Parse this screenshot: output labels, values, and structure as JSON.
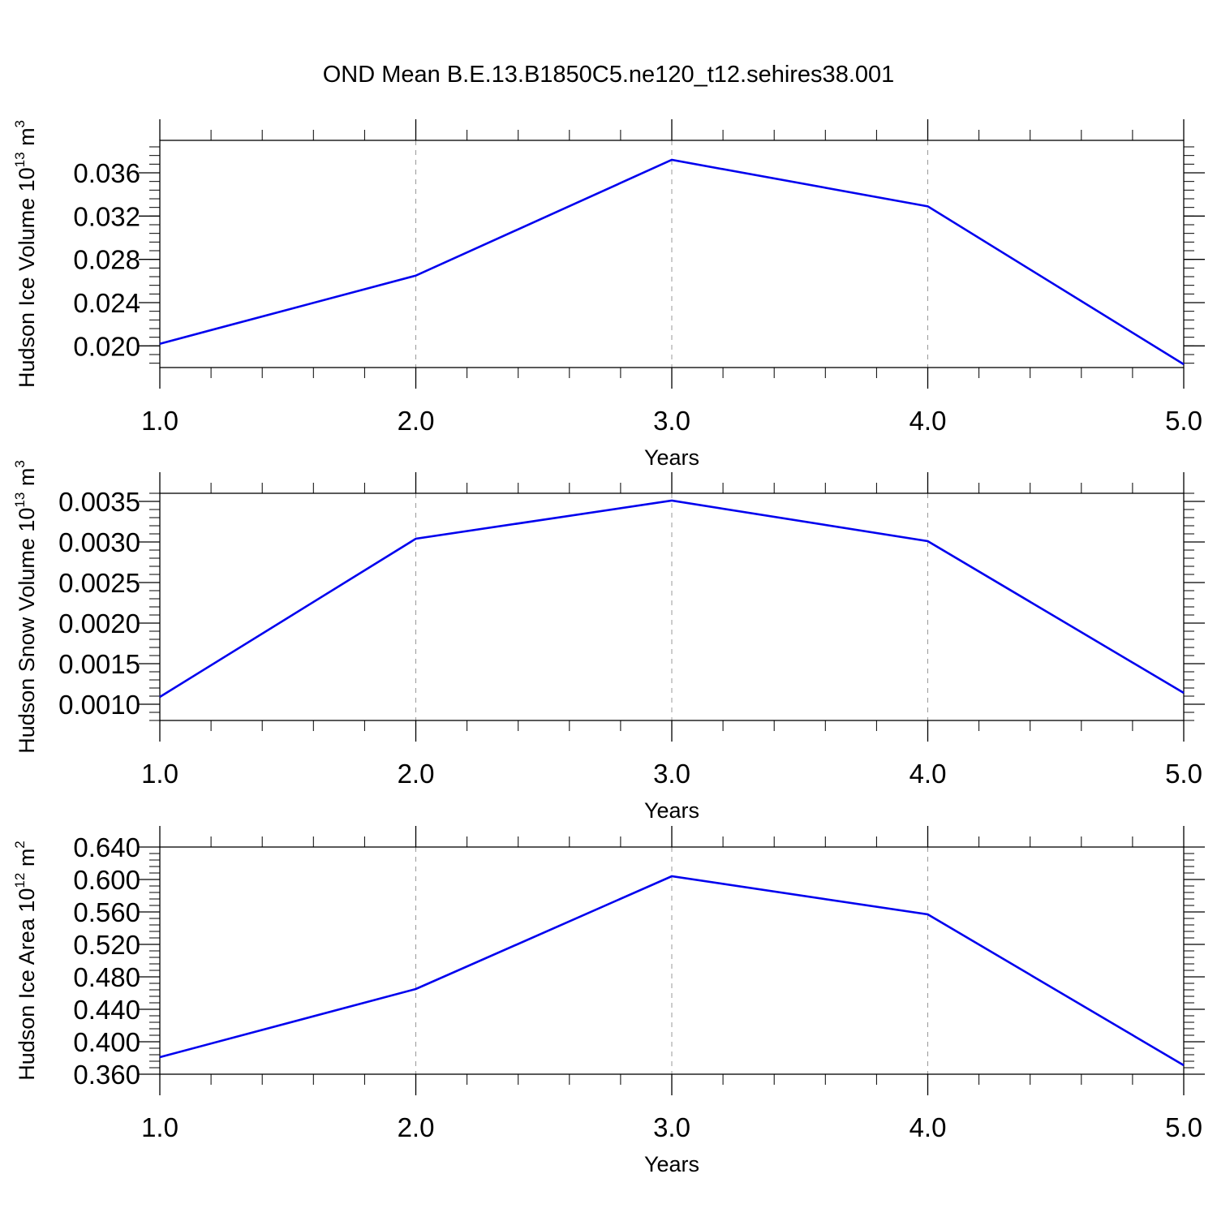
{
  "title": "OND Mean B.E.13.B1850C5.ne120_t12.sehires38.001",
  "colors": {
    "series": "#0000ee",
    "axes": "#000000",
    "grid": "#999999"
  },
  "chart_data": [
    {
      "type": "line",
      "ylabel": "Hudson Ice Volume 10",
      "ylabel_exp": "13",
      "ylabel_unit": " m",
      "ylabel_unit_exp": "3",
      "xlabel": "Years",
      "xlim": [
        1.0,
        5.0
      ],
      "ylim": [
        0.018,
        0.039
      ],
      "x_ticks": [
        "1.0",
        "2.0",
        "3.0",
        "4.0",
        "5.0"
      ],
      "y_ticks": [
        "0.020",
        "0.024",
        "0.028",
        "0.032",
        "0.036"
      ],
      "grid": "vertical dashed",
      "x": [
        1,
        2,
        3,
        4,
        5
      ],
      "values": [
        0.0202,
        0.0265,
        0.0372,
        0.0329,
        0.0183
      ]
    },
    {
      "type": "line",
      "ylabel": "Hudson Snow Volume 10",
      "ylabel_exp": "13",
      "ylabel_unit": " m",
      "ylabel_unit_exp": "3",
      "xlabel": "Years",
      "xlim": [
        1.0,
        5.0
      ],
      "ylim": [
        0.0008,
        0.0036
      ],
      "x_ticks": [
        "1.0",
        "2.0",
        "3.0",
        "4.0",
        "5.0"
      ],
      "y_ticks": [
        "0.0010",
        "0.0015",
        "0.0020",
        "0.0025",
        "0.0030",
        "0.0035"
      ],
      "grid": "vertical dashed",
      "x": [
        1,
        2,
        3,
        4,
        5
      ],
      "values": [
        0.00109,
        0.00304,
        0.00351,
        0.00301,
        0.00114
      ]
    },
    {
      "type": "line",
      "ylabel": "Hudson Ice Area 10",
      "ylabel_exp": "12",
      "ylabel_unit": " m",
      "ylabel_unit_exp": "2",
      "xlabel": "Years",
      "xlim": [
        1.0,
        5.0
      ],
      "ylim": [
        0.36,
        0.64
      ],
      "x_ticks": [
        "1.0",
        "2.0",
        "3.0",
        "4.0",
        "5.0"
      ],
      "y_ticks": [
        "0.360",
        "0.400",
        "0.440",
        "0.480",
        "0.520",
        "0.560",
        "0.600",
        "0.640"
      ],
      "grid": "vertical dashed",
      "x": [
        1,
        2,
        3,
        4,
        5
      ],
      "values": [
        0.381,
        0.465,
        0.604,
        0.557,
        0.371
      ]
    }
  ]
}
